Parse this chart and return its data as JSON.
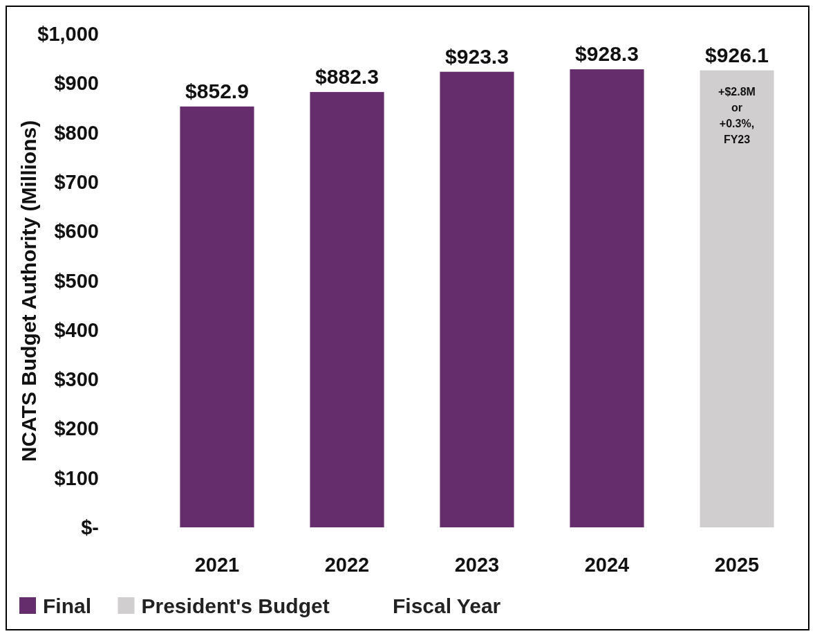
{
  "chart_data": {
    "type": "bar",
    "ylabel": "NCATS Budget Authority (Millions)",
    "xlabel": "Fiscal Year",
    "categories": [
      "2021",
      "2022",
      "2023",
      "2024",
      "2025"
    ],
    "series": [
      {
        "name": "Final",
        "color": "#652d6b",
        "values": [
          852.9,
          882.3,
          923.3,
          928.3,
          null
        ],
        "value_labels": [
          "$852.9",
          "$882.3",
          "$923.3",
          "$928.3",
          null
        ]
      },
      {
        "name": "President's Budget",
        "color": "#d0cece",
        "values": [
          null,
          null,
          null,
          null,
          926.1
        ],
        "value_labels": [
          null,
          null,
          null,
          null,
          "$926.1"
        ]
      }
    ],
    "ylim": [
      0,
      1000
    ],
    "yticks": [
      {
        "value": 0,
        "label": "$-"
      },
      {
        "value": 100,
        "label": "$100"
      },
      {
        "value": 200,
        "label": "$200"
      },
      {
        "value": 300,
        "label": "$300"
      },
      {
        "value": 400,
        "label": "$400"
      },
      {
        "value": 500,
        "label": "$500"
      },
      {
        "value": 600,
        "label": "$600"
      },
      {
        "value": 700,
        "label": "$700"
      },
      {
        "value": 800,
        "label": "$800"
      },
      {
        "value": 900,
        "label": "$900"
      },
      {
        "value": 1000,
        "label": "$1,000"
      }
    ],
    "annotations": [
      "+$2.8M or +0.3%, FY23"
    ],
    "grid": false,
    "legend": "bottom left"
  }
}
